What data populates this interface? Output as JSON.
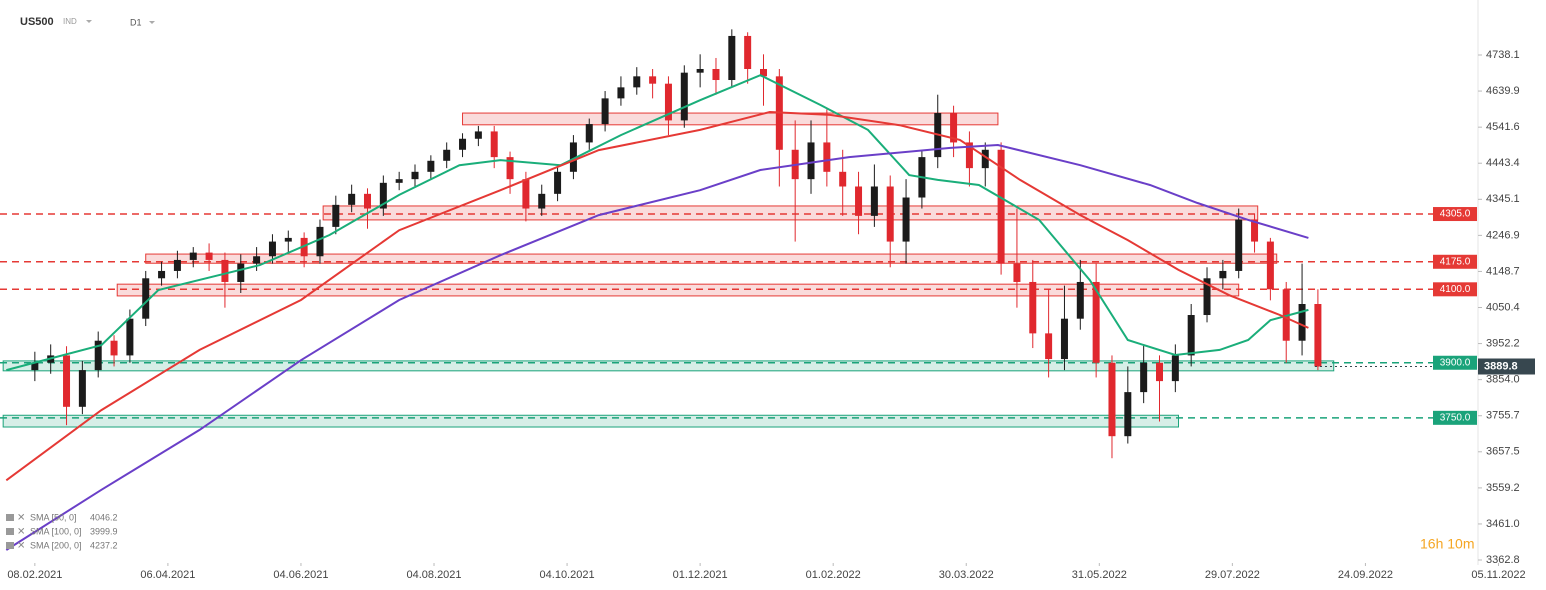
{
  "header": {
    "symbol": "US500",
    "market": "IND",
    "timeframe": "D1"
  },
  "countdown": "16h 10m",
  "chart_data": {
    "type": "candlestick",
    "xlim": [
      -11,
      477
    ],
    "ylim": [
      3349.2,
      4887.9
    ],
    "grid": false,
    "up_color": "#1b1b1b",
    "down_color": "#e0282e",
    "xticks": [
      {
        "value": 0,
        "label": "08.02.2021"
      },
      {
        "value": 42,
        "label": "06.04.2021"
      },
      {
        "value": 84,
        "label": "04.06.2021"
      },
      {
        "value": 126,
        "label": "04.08.2021"
      },
      {
        "value": 168,
        "label": "04.10.2021"
      },
      {
        "value": 210,
        "label": "01.12.2021"
      },
      {
        "value": 252,
        "label": "01.02.2022"
      },
      {
        "value": 294,
        "label": "30.03.2022"
      },
      {
        "value": 336,
        "label": "31.05.2022"
      },
      {
        "value": 378,
        "label": "29.07.2022"
      },
      {
        "value": 420,
        "label": "24.09.2022"
      },
      {
        "value": 462,
        "label": "05.11.2022"
      }
    ],
    "yticks": [
      4738.1,
      4639.9,
      4541.6,
      4443.4,
      4345.1,
      4246.9,
      4148.7,
      4050.4,
      3952.2,
      {
        "value": 3854.0,
        "label": "3854.0"
      },
      3755.7,
      3657.5,
      3559.2,
      {
        "value": 3461.0,
        "label": "3461.0"
      },
      3362.8
    ],
    "x": [
      0,
      5,
      10,
      15,
      20,
      25,
      30,
      35,
      40,
      45,
      50,
      55,
      60,
      65,
      70,
      75,
      80,
      85,
      90,
      95,
      100,
      105,
      110,
      115,
      120,
      125,
      130,
      135,
      140,
      145,
      150,
      155,
      160,
      165,
      170,
      175,
      180,
      185,
      190,
      195,
      200,
      205,
      210,
      215,
      220,
      225,
      230,
      235,
      240,
      245,
      250,
      255,
      260,
      265,
      270,
      275,
      280,
      285,
      290,
      295,
      300,
      305,
      310,
      315,
      320,
      325,
      330,
      335,
      340,
      345,
      350,
      355,
      360,
      365,
      370,
      375,
      380,
      385,
      390,
      395,
      400,
      405
    ],
    "open": [
      3880,
      3900,
      3920,
      3780,
      3880,
      3960,
      3920,
      4020,
      4130,
      4150,
      4180,
      4200,
      4180,
      4120,
      4170,
      4190,
      4230,
      4240,
      4190,
      4270,
      4330,
      4360,
      4320,
      4390,
      4400,
      4420,
      4450,
      4480,
      4510,
      4530,
      4460,
      4400,
      4320,
      4360,
      4420,
      4500,
      4550,
      4620,
      4650,
      4680,
      4660,
      4560,
      4690,
      4700,
      4670,
      4790,
      4700,
      4680,
      4480,
      4400,
      4500,
      4420,
      4380,
      4300,
      4380,
      4230,
      4350,
      4460,
      4580,
      4500,
      4430,
      4480,
      4170,
      4120,
      3980,
      3910,
      4020,
      4120,
      3900,
      3700,
      3820,
      3900,
      3850,
      3920,
      4030,
      4130,
      4150,
      4290,
      4230,
      4100,
      3960,
      4060
    ],
    "high": [
      3930,
      3950,
      3945,
      3905,
      3985,
      3975,
      4045,
      4150,
      4175,
      4205,
      4215,
      4225,
      4200,
      4195,
      4215,
      4250,
      4260,
      4255,
      4290,
      4355,
      4385,
      4375,
      4410,
      4420,
      4440,
      4465,
      4500,
      4525,
      4545,
      4545,
      4475,
      4420,
      4385,
      4440,
      4520,
      4565,
      4640,
      4680,
      4705,
      4700,
      4680,
      4710,
      4740,
      4730,
      4808,
      4800,
      4740,
      4700,
      4560,
      4560,
      4590,
      4480,
      4420,
      4440,
      4410,
      4400,
      4480,
      4630,
      4600,
      4530,
      4500,
      4500,
      4320,
      4180,
      4100,
      4110,
      4180,
      4170,
      3920,
      3890,
      3950,
      3920,
      3950,
      4060,
      4160,
      4180,
      4320,
      4305,
      4240,
      4120,
      4170,
      4100
    ],
    "low": [
      3850,
      3870,
      3730,
      3760,
      3860,
      3890,
      3900,
      4000,
      4110,
      4130,
      4160,
      4150,
      4050,
      4090,
      4150,
      4170,
      4200,
      4160,
      4170,
      4250,
      4310,
      4265,
      4300,
      4370,
      4380,
      4400,
      4430,
      4460,
      4490,
      4430,
      4360,
      4285,
      4300,
      4340,
      4400,
      4480,
      4530,
      4600,
      4630,
      4620,
      4520,
      4540,
      4650,
      4630,
      4650,
      4660,
      4600,
      4380,
      4230,
      4360,
      4380,
      4300,
      4250,
      4270,
      4160,
      4170,
      4320,
      4430,
      4460,
      4380,
      4380,
      4140,
      4050,
      3940,
      3860,
      3880,
      3990,
      3860,
      3640,
      3680,
      3790,
      3740,
      3820,
      3890,
      4010,
      4100,
      4130,
      4200,
      4070,
      3900,
      3920,
      3880
    ],
    "close": [
      3900,
      3920,
      3780,
      3880,
      3960,
      3920,
      4020,
      4130,
      4150,
      4180,
      4200,
      4180,
      4120,
      4170,
      4190,
      4230,
      4240,
      4190,
      4270,
      4330,
      4360,
      4320,
      4390,
      4400,
      4420,
      4450,
      4480,
      4510,
      4530,
      4460,
      4400,
      4320,
      4360,
      4420,
      4500,
      4550,
      4620,
      4650,
      4680,
      4660,
      4560,
      4690,
      4700,
      4670,
      4790,
      4700,
      4680,
      4480,
      4400,
      4500,
      4420,
      4380,
      4300,
      4380,
      4230,
      4350,
      4460,
      4580,
      4500,
      4430,
      4480,
      4170,
      4120,
      3980,
      3910,
      4020,
      4120,
      3900,
      3700,
      3820,
      3900,
      3850,
      3920,
      4030,
      4130,
      4150,
      4290,
      4230,
      4100,
      3960,
      4060,
      3889.8
    ],
    "last_price": 3889.8,
    "series": [
      {
        "name": "SMA [50, 0]",
        "last": 4046.2,
        "color": "#1aae7a",
        "x": [
          -9,
          21,
          39,
          71,
          93,
          115,
          134,
          147,
          166,
          185,
          210,
          229,
          248,
          263,
          276,
          285,
          298,
          317,
          333,
          345,
          360,
          374,
          383,
          390,
          402
        ],
        "values": [
          3880,
          3948,
          4098,
          4166,
          4248,
          4357,
          4438,
          4452,
          4438,
          4520,
          4615,
          4683,
          4602,
          4534,
          4411,
          4398,
          4384,
          4289,
          4125,
          3962,
          3921,
          3935,
          3962,
          4016,
          4044
        ]
      },
      {
        "name": "SMA [100, 0]",
        "last": 3999.9,
        "color": "#e53935",
        "x": [
          -9,
          21,
          52,
          84,
          115,
          147,
          178,
          210,
          232,
          251,
          273,
          292,
          311,
          330,
          345,
          361,
          377,
          393,
          402
        ],
        "values": [
          3580,
          3771,
          3935,
          4071,
          4261,
          4370,
          4479,
          4534,
          4583,
          4575,
          4547,
          4507,
          4398,
          4302,
          4234,
          4153,
          4084,
          4030,
          3995
        ]
      },
      {
        "name": "SMA [200, 0]",
        "last": 4237.2,
        "color": "#6a3fc8",
        "x": [
          -9,
          21,
          52,
          84,
          115,
          147,
          178,
          210,
          229,
          257,
          289,
          304,
          330,
          352,
          367,
          383,
          402
        ],
        "values": [
          3390,
          3554,
          3717,
          3907,
          4071,
          4193,
          4302,
          4370,
          4425,
          4460,
          4485,
          4493,
          4438,
          4384,
          4335,
          4289,
          4240
        ]
      }
    ],
    "zones": [
      {
        "x0": 135,
        "x1": 304,
        "low": 4548,
        "high": 4580,
        "color": "#e53935"
      },
      {
        "x0": 91,
        "x1": 386,
        "low": 4289,
        "high": 4327,
        "color": "#e53935"
      },
      {
        "x0": 35,
        "x1": 392,
        "low": 4171,
        "high": 4196,
        "color": "#e53935"
      },
      {
        "x0": 26,
        "x1": 380,
        "low": 4082,
        "high": 4114,
        "color": "#e53935"
      },
      {
        "x0": -10,
        "x1": 410,
        "low": 3878,
        "high": 3905,
        "color": "#1aa37a"
      },
      {
        "x0": -10,
        "x1": 361,
        "low": 3725,
        "high": 3757,
        "color": "#1aa37a"
      }
    ],
    "levels": [
      {
        "value": 4305,
        "label": "4305.0",
        "color": "#e53935"
      },
      {
        "value": 4175,
        "label": "4175.0",
        "color": "#e53935"
      },
      {
        "value": 4100,
        "label": "4100.0",
        "color": "#e53935"
      },
      {
        "value": 3900,
        "label": "3900.0",
        "color": "#1aa37a"
      },
      {
        "value": 3750,
        "label": "3750.0",
        "color": "#1aa37a"
      }
    ]
  }
}
